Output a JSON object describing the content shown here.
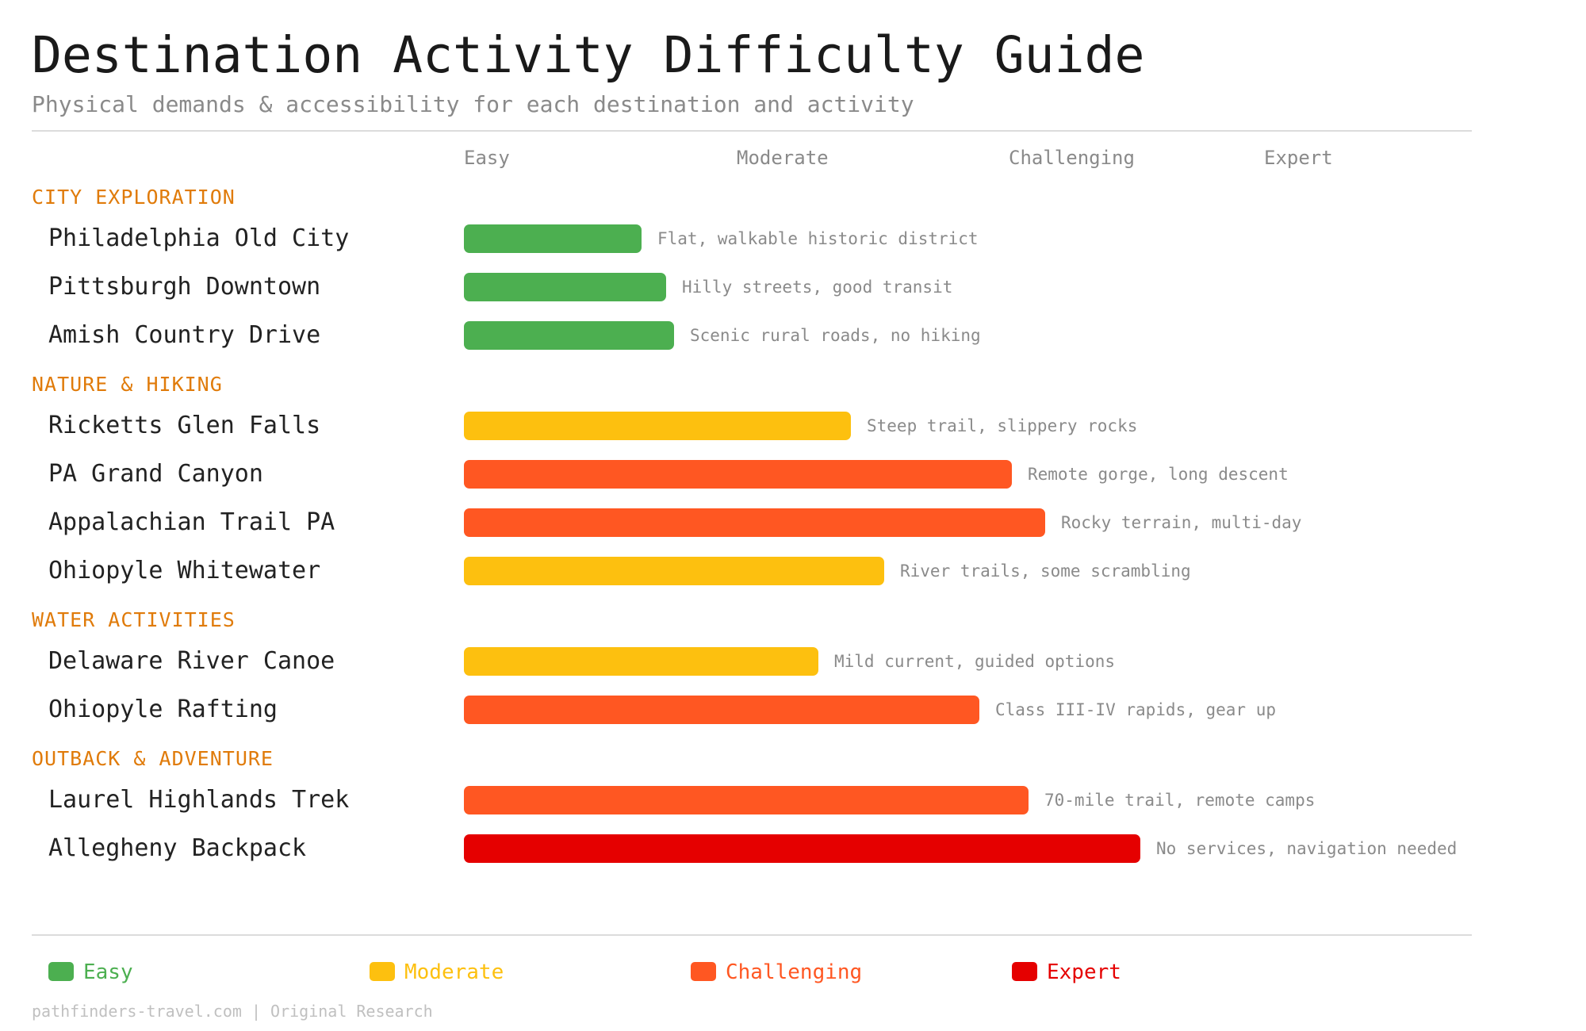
{
  "title": "Destination Activity Difficulty Guide",
  "subtitle": "Physical demands & accessibility for each destination and activity",
  "footer": "pathfinders-travel.com | Original Research",
  "colors": {
    "Easy": "#4caf50",
    "Moderate": "#fdc00f",
    "Challenging": "#ff5722",
    "Expert": "#e50000"
  },
  "chart_data": {
    "type": "bar",
    "orientation": "horizontal",
    "scale_labels": [
      "Easy",
      "Moderate",
      "Challenging",
      "Expert"
    ],
    "xlim": [
      0,
      4
    ],
    "legend": [
      "Easy",
      "Moderate",
      "Challenging",
      "Expert"
    ],
    "legend_position": "bottom",
    "grid": false,
    "groups": [
      {
        "name": "CITY EXPLORATION",
        "items": [
          {
            "name": "Philadelphia Old City",
            "value": 0.65,
            "level": "Easy",
            "note": "Flat, walkable historic district"
          },
          {
            "name": "Pittsburgh Downtown",
            "value": 0.74,
            "level": "Easy",
            "note": "Hilly streets, good transit"
          },
          {
            "name": "Amish Country Drive",
            "value": 0.77,
            "level": "Easy",
            "note": "Scenic rural roads, no hiking"
          }
        ]
      },
      {
        "name": "NATURE & HIKING",
        "items": [
          {
            "name": "Ricketts Glen Falls",
            "value": 1.42,
            "level": "Moderate",
            "note": "Steep trail, slippery rocks"
          },
          {
            "name": "PA Grand Canyon",
            "value": 2.01,
            "level": "Challenging",
            "note": "Remote gorge, long descent"
          },
          {
            "name": "Appalachian Trail PA",
            "value": 2.13,
            "level": "Challenging",
            "note": "Rocky terrain, multi-day"
          },
          {
            "name": "Ohiopyle Whitewater",
            "value": 1.54,
            "level": "Moderate",
            "note": "River trails, some scrambling"
          }
        ]
      },
      {
        "name": "WATER ACTIVITIES",
        "items": [
          {
            "name": "Delaware River Canoe",
            "value": 1.3,
            "level": "Moderate",
            "note": "Mild current, guided options"
          },
          {
            "name": "Ohiopyle Rafting",
            "value": 1.89,
            "level": "Challenging",
            "note": "Class III-IV rapids, gear up"
          }
        ]
      },
      {
        "name": "OUTBACK & ADVENTURE",
        "items": [
          {
            "name": "Laurel Highlands Trek",
            "value": 2.07,
            "level": "Challenging",
            "note": "70-mile trail, remote camps"
          },
          {
            "name": "Allegheny Backpack",
            "value": 2.48,
            "level": "Expert",
            "note": "No services, navigation needed"
          }
        ]
      }
    ]
  }
}
